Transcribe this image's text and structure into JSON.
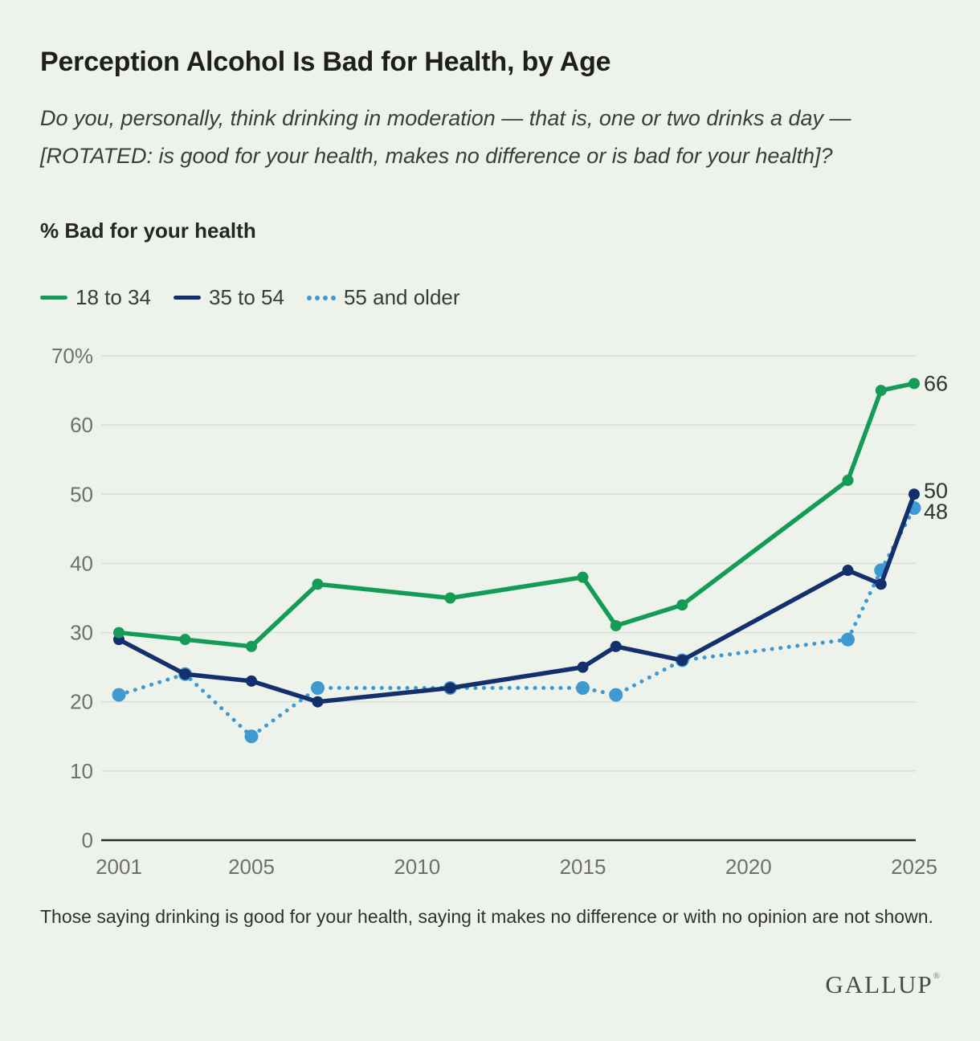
{
  "header": {
    "title": "Perception Alcohol Is Bad for Health, by Age",
    "question": "Do you, personally, think drinking in moderation — that is, one or two drinks a day — [ROTATED: is good for your health, makes no difference or is bad for your health]?",
    "measure_label": "% Bad for your health"
  },
  "legend": [
    {
      "label": "18 to 34",
      "color": "#149b55",
      "style": "solid"
    },
    {
      "label": "35 to 54",
      "color": "#14306c",
      "style": "solid"
    },
    {
      "label": "55 and older",
      "color": "#3e99d3",
      "style": "dotted"
    }
  ],
  "chart_data": {
    "type": "line",
    "x": [
      2001,
      2003,
      2005,
      2007,
      2011,
      2015,
      2016,
      2018,
      2023,
      2024,
      2025
    ],
    "series": [
      {
        "name": "18 to 34",
        "color": "#149b55",
        "style": "solid",
        "values": [
          30,
          29,
          28,
          37,
          35,
          38,
          31,
          34,
          52,
          65,
          66
        ],
        "end_label": "66"
      },
      {
        "name": "35 to 54",
        "color": "#14306c",
        "style": "solid",
        "values": [
          29,
          24,
          23,
          20,
          22,
          25,
          28,
          26,
          39,
          37,
          50
        ],
        "end_label": "50"
      },
      {
        "name": "55 and older",
        "color": "#3e99d3",
        "style": "dotted",
        "values": [
          21,
          24,
          15,
          22,
          22,
          22,
          21,
          26,
          29,
          39,
          48
        ],
        "end_label": "48"
      }
    ],
    "ylim": [
      0,
      70
    ],
    "y_ticks": [
      0,
      10,
      20,
      30,
      40,
      50,
      60,
      70
    ],
    "y_tick_labels": [
      "0",
      "10",
      "20",
      "30",
      "40",
      "50",
      "60",
      "70%"
    ],
    "x_ticks": [
      2001,
      2005,
      2010,
      2015,
      2020,
      2025
    ],
    "grid": true,
    "legend_position": "top",
    "colors": {
      "background": "#edf3eb",
      "gridline": "#d9ded7",
      "axis_line": "#2d2d2d",
      "tick_label": "#6f6f6f",
      "end_label": "#323232"
    }
  },
  "footnote": "Those saying drinking is good for your health, saying it makes no difference or with no opinion are not shown.",
  "branding": {
    "logo": "GALLUP",
    "registered_mark": "®"
  }
}
